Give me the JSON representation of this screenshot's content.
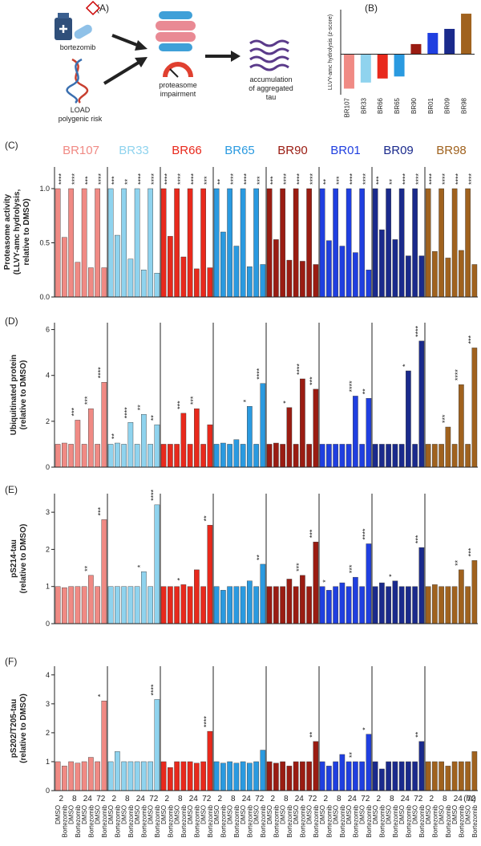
{
  "diagram": {
    "label": "(A)",
    "drug": "bortezomib",
    "risk": [
      "LOAD",
      "polygenic risk"
    ],
    "impairment": [
      "proteasome",
      "impairment"
    ],
    "outcome": [
      "accumulation",
      "of aggregated",
      "tau"
    ]
  },
  "chart_data": [
    {
      "type": "bar",
      "label": "(B)",
      "ylabel": "LLVY-amc hydrolysis (z-score)",
      "categories": [
        "BR107",
        "BR33",
        "BR66",
        "BR65",
        "BR90",
        "BR01",
        "BR09",
        "BR98"
      ],
      "values": [
        -1.7,
        -1.4,
        -1.2,
        -1.1,
        0.5,
        1.05,
        1.25,
        2.0
      ],
      "colors": [
        "#f08a84",
        "#8fd3ee",
        "#e8291c",
        "#2a9ae0",
        "#9a1c12",
        "#1f3fe0",
        "#1a2a8c",
        "#a0621e"
      ],
      "ylim": [
        -2,
        2.2
      ]
    },
    {
      "type": "grouped_bar",
      "label": "(C)",
      "ylabel": [
        "Proteasome activity",
        "(LLVY-amc hydrolysis,",
        "relative to DMSO)"
      ],
      "ylim": [
        0,
        1.2
      ],
      "yticks": [
        {
          "value": 0,
          "label": "0.0"
        },
        {
          "value": 0.5,
          "label": "0.5"
        },
        {
          "value": 1,
          "label": "1.0"
        }
      ],
      "series": [
        {
          "name": "BR107",
          "color": "#f08a84",
          "values": [
            1,
            0.55,
            1,
            0.32,
            1,
            0.27,
            1,
            0.27
          ],
          "stars": [
            "****",
            "****",
            "***",
            "****"
          ]
        },
        {
          "name": "BR33",
          "color": "#8fd3ee",
          "values": [
            1,
            0.57,
            1,
            0.35,
            1,
            0.25,
            1,
            0.22
          ],
          "stars": [
            "***",
            "**",
            "****",
            "****"
          ]
        },
        {
          "name": "BR66",
          "color": "#e8291c",
          "values": [
            1,
            0.56,
            1,
            0.37,
            1,
            0.26,
            1,
            0.27
          ],
          "stars": [
            "****",
            "****",
            "****",
            "***"
          ]
        },
        {
          "name": "BR65",
          "color": "#2a9ae0",
          "values": [
            1,
            0.6,
            1,
            0.47,
            1,
            0.28,
            1,
            0.3
          ],
          "stars": [
            "**",
            "****",
            "****",
            "***"
          ]
        },
        {
          "name": "BR90",
          "color": "#9a1c12",
          "values": [
            1,
            0.53,
            1,
            0.34,
            1,
            0.33,
            1,
            0.3
          ],
          "stars": [
            "***",
            "****",
            "****",
            "****"
          ]
        },
        {
          "name": "BR01",
          "color": "#1f3fe0",
          "values": [
            1,
            0.52,
            1,
            0.47,
            1,
            0.41,
            1,
            0.25
          ],
          "stars": [
            "**",
            "***",
            "****",
            "****"
          ]
        },
        {
          "name": "BR09",
          "color": "#1a2a8c",
          "values": [
            1,
            0.62,
            1,
            0.53,
            1,
            0.38,
            1,
            0.38
          ],
          "stars": [
            "***",
            "**",
            "****",
            "****"
          ]
        },
        {
          "name": "BR98",
          "color": "#a0621e",
          "values": [
            1,
            0.42,
            1,
            0.36,
            1,
            0.43,
            1,
            0.3
          ],
          "stars": [
            "****",
            "****",
            "****",
            "****"
          ]
        }
      ]
    },
    {
      "type": "grouped_bar",
      "label": "(D)",
      "ylabel": [
        "Ubiquitinated protein",
        "(relative to DMSO)"
      ],
      "ylim": [
        0,
        6.3
      ],
      "yticks": [
        0,
        2,
        4,
        6
      ],
      "series": [
        {
          "values": [
            1,
            1.05,
            1,
            2.05,
            1,
            2.55,
            1,
            3.7
          ],
          "stars": [
            null,
            "***",
            "***",
            "****"
          ]
        },
        {
          "values": [
            1,
            1.05,
            1,
            1.95,
            1,
            2.3,
            1,
            1.85
          ],
          "stars": [
            "**",
            "****",
            "**",
            "**"
          ]
        },
        {
          "values": [
            1,
            1.0,
            1,
            2.35,
            1,
            2.55,
            1,
            1.85
          ],
          "stars": [
            null,
            "***",
            "***",
            null
          ]
        },
        {
          "values": [
            1,
            1.05,
            1,
            1.2,
            1,
            2.65,
            1,
            3.65
          ],
          "stars": [
            null,
            null,
            "*",
            "****"
          ]
        },
        {
          "values": [
            1,
            1.05,
            1,
            2.6,
            1,
            3.85,
            1,
            3.4
          ],
          "stars": [
            null,
            "*",
            "****",
            "***"
          ]
        },
        {
          "values": [
            1,
            1.0,
            1,
            1.0,
            1,
            3.1,
            1,
            3.0
          ],
          "stars": [
            null,
            null,
            "****",
            "**"
          ]
        },
        {
          "values": [
            1,
            1.0,
            1,
            1.0,
            1,
            4.2,
            1,
            5.5
          ],
          "stars": [
            null,
            null,
            "*",
            "****"
          ]
        },
        {
          "values": [
            1,
            1.0,
            1,
            1.75,
            1,
            3.6,
            1,
            5.2
          ],
          "stars": [
            null,
            "***",
            "****",
            "***"
          ]
        }
      ]
    },
    {
      "type": "grouped_bar",
      "label": "(E)",
      "ylabel": [
        "pS214-tau",
        "(relative to DMSO)"
      ],
      "ylim": [
        0,
        3.5
      ],
      "yticks": [
        0,
        1,
        2,
        3
      ],
      "series": [
        {
          "values": [
            1,
            0.97,
            1,
            1.0,
            1,
            1.3,
            1,
            2.8
          ],
          "stars": [
            null,
            null,
            "**",
            "***"
          ]
        },
        {
          "values": [
            1,
            1.0,
            1,
            1.0,
            1,
            1.4,
            1,
            3.2
          ],
          "stars": [
            null,
            null,
            "*",
            "****"
          ]
        },
        {
          "values": [
            1,
            1.0,
            1,
            1.05,
            1,
            1.45,
            1,
            2.65
          ],
          "stars": [
            null,
            "*",
            null,
            "**"
          ]
        },
        {
          "values": [
            1,
            0.9,
            1,
            1.0,
            1,
            1.15,
            1,
            1.6
          ],
          "stars": [
            null,
            null,
            null,
            "**"
          ]
        },
        {
          "values": [
            1,
            1.0,
            1,
            1.2,
            1,
            1.3,
            1,
            2.2
          ],
          "stars": [
            null,
            null,
            "***",
            "***"
          ]
        },
        {
          "values": [
            1,
            0.9,
            1,
            1.1,
            1,
            1.25,
            1,
            2.15
          ],
          "stars": [
            "*",
            null,
            "***",
            "****"
          ]
        },
        {
          "values": [
            1,
            1.1,
            1,
            1.15,
            1,
            1.0,
            1,
            2.05
          ],
          "stars": [
            null,
            "*",
            null,
            "***"
          ]
        },
        {
          "values": [
            1,
            1.05,
            1,
            1.0,
            1,
            1.45,
            1,
            1.7
          ],
          "stars": [
            null,
            null,
            "**",
            "***"
          ]
        }
      ]
    },
    {
      "type": "grouped_bar",
      "label": "(F)",
      "ylabel": [
        "pS202/T205-tau",
        "(relative to DMSO)"
      ],
      "ylim": [
        0,
        4.3
      ],
      "yticks": [
        0,
        1,
        2,
        3,
        4
      ],
      "categories": [
        "DMSO",
        "Bortezomib",
        "DMSO",
        "Bortezomib",
        "DMSO",
        "Bortezomib",
        "DMSO",
        "Bortezomib"
      ],
      "time_labels": [
        "2",
        "8",
        "24",
        "72"
      ],
      "time_unit": "(hr)",
      "series": [
        {
          "values": [
            1,
            0.85,
            1,
            0.95,
            1,
            1.15,
            1,
            3.1
          ],
          "stars": [
            null,
            null,
            null,
            "*"
          ]
        },
        {
          "values": [
            1,
            1.35,
            1,
            1.0,
            1,
            1.0,
            1,
            3.15
          ],
          "stars": [
            null,
            null,
            null,
            "****"
          ]
        },
        {
          "values": [
            1,
            0.8,
            1,
            1.0,
            1,
            0.95,
            1,
            2.05
          ],
          "stars": [
            null,
            null,
            null,
            "****"
          ]
        },
        {
          "values": [
            1,
            0.95,
            1,
            0.95,
            1,
            0.95,
            1,
            1.4
          ],
          "stars": [
            null,
            null,
            null,
            null
          ]
        },
        {
          "values": [
            1,
            0.95,
            1,
            0.85,
            1,
            1.0,
            1,
            1.7
          ],
          "stars": [
            null,
            null,
            null,
            "**"
          ]
        },
        {
          "values": [
            1,
            0.85,
            1,
            1.25,
            1,
            1.0,
            1,
            1.95
          ],
          "stars": [
            null,
            null,
            "**",
            "*"
          ]
        },
        {
          "values": [
            1,
            0.75,
            1,
            1.0,
            1,
            1.0,
            1,
            1.7
          ],
          "stars": [
            null,
            null,
            null,
            "**"
          ]
        },
        {
          "values": [
            1,
            1.0,
            1,
            0.85,
            1,
            1.0,
            1,
            1.35
          ],
          "stars": [
            null,
            null,
            null,
            null
          ]
        }
      ]
    }
  ]
}
